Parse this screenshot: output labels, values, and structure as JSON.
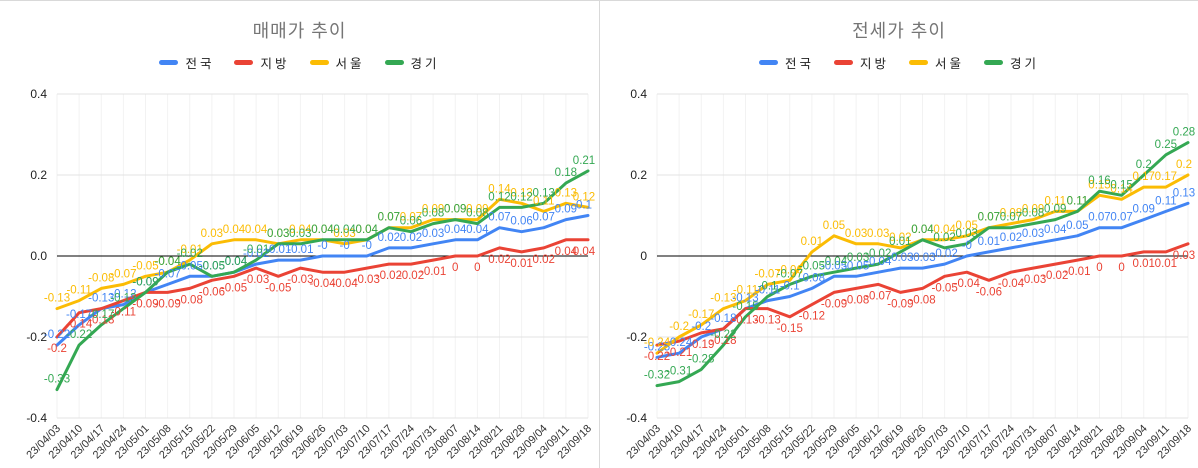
{
  "chart_data": [
    {
      "type": "line",
      "title": "매매가 추이",
      "legend_position": "top",
      "grid": true,
      "ylim": [
        -0.4,
        0.4
      ],
      "y_tick_labels": [
        "0.4",
        "0.2",
        "0.0",
        "-0.2",
        "-0.4"
      ],
      "y_tick_values": [
        0.4,
        0.2,
        0,
        -0.2,
        -0.4
      ],
      "categories": [
        "23/04/03",
        "23/04/10",
        "23/04/17",
        "23/04/24",
        "23/05/01",
        "23/05/08",
        "23/05/15",
        "23/05/22",
        "23/05/29",
        "23/06/05",
        "23/06/12",
        "23/06/19",
        "23/06/26",
        "23/07/03",
        "23/07/10",
        "23/07/17",
        "23/07/24",
        "23/07/31",
        "23/08/07",
        "23/08/14",
        "23/08/21",
        "23/08/28",
        "23/09/04",
        "23/09/11",
        "23/09/18"
      ],
      "series": [
        {
          "name": "전국",
          "color": "#4285f4",
          "label_position": "above",
          "values": [
            "-0.22",
            "-0.17",
            "-0.13",
            "-0.12",
            "-0.09",
            "-0.07",
            "-0.05",
            "-0.05",
            "-0.04",
            "-0.02",
            "-0.01",
            "-0.01",
            "-0",
            "-0",
            "-0",
            "0.02",
            "0.02",
            "0.03",
            "0.04",
            "0.04",
            "0.07",
            "0.06",
            "0.07",
            "0.09",
            "0.1"
          ]
        },
        {
          "name": "지방",
          "color": "#ea4335",
          "label_position": "below",
          "values": [
            "-0.2",
            "-0.14",
            "-0.13",
            "-0.11",
            "-0.09",
            "-0.09",
            "-0.08",
            "-0.06",
            "-0.05",
            "-0.03",
            "-0.05",
            "-0.03",
            "-0.04",
            "-0.04",
            "-0.03",
            "-0.02",
            "-0.02",
            "-0.01",
            "0",
            "0",
            "0.02",
            "0.01",
            "0.02",
            "0.04",
            "0.04"
          ]
        },
        {
          "name": "서울",
          "color": "#fbbc04",
          "label_position": "above",
          "values": [
            "-0.13",
            "-0.11",
            "-0.08",
            "-0.07",
            "-0.05",
            "-0.04",
            "-0.01",
            "0.03",
            "0.04",
            "0.04",
            "0.03",
            "0.04",
            "0.04",
            "0.03",
            "0.04",
            "0.07",
            "0.07",
            "0.09",
            "0.09",
            "0.09",
            "0.14",
            "0.13",
            "0.11",
            "0.13",
            "0.12"
          ]
        },
        {
          "name": "경기",
          "color": "#34a853",
          "label_position": "above",
          "values": [
            "-0.33",
            "-0.22",
            "-0.17",
            "-0.13",
            "-0.09",
            "-0.04",
            "-0.02",
            "-0.05",
            "-0.04",
            "-0.01",
            "0.03",
            "0.03",
            "0.04",
            "0.04",
            "0.04",
            "0.07",
            "0.06",
            "0.08",
            "0.09",
            "0.08",
            "0.12",
            "0.12",
            "0.13",
            "0.18",
            "0.21"
          ]
        }
      ]
    },
    {
      "type": "line",
      "title": "전세가 추이",
      "legend_position": "top",
      "grid": true,
      "ylim": [
        -0.4,
        0.4
      ],
      "y_tick_labels": [
        "0.4",
        "0.2",
        "0",
        "-0.2",
        "-0.4"
      ],
      "y_tick_values": [
        0.4,
        0.2,
        0,
        -0.2,
        -0.4
      ],
      "categories": [
        "23/04/03",
        "23/04/10",
        "23/04/17",
        "23/04/24",
        "23/05/01",
        "23/05/08",
        "23/05/15",
        "23/05/22",
        "23/05/29",
        "23/06/05",
        "23/06/12",
        "23/06/19",
        "23/06/26",
        "23/07/03",
        "23/07/10",
        "23/07/17",
        "23/07/24",
        "23/07/31",
        "23/08/07",
        "23/08/14",
        "23/08/21",
        "23/08/28",
        "23/09/04",
        "23/09/11",
        "23/09/18"
      ],
      "series": [
        {
          "name": "전국",
          "color": "#4285f4",
          "label_position": "above",
          "values": [
            "-0.25",
            "-0.24",
            "-0.2",
            "-0.18",
            "-0.13",
            "-0.11",
            "-0.1",
            "-0.08",
            "-0.05",
            "-0.05",
            "-0.04",
            "-0.03",
            "-0.03",
            "-0.02",
            "-0",
            "0.01",
            "0.02",
            "0.03",
            "0.04",
            "0.05",
            "0.07",
            "0.07",
            "0.09",
            "0.11",
            "0.13"
          ]
        },
        {
          "name": "지방",
          "color": "#ea4335",
          "label_position": "below",
          "values": [
            "-0.22",
            "-0.21",
            "-0.19",
            "-0.18",
            "-0.13",
            "-0.13",
            "-0.15",
            "-0.12",
            "-0.09",
            "-0.08",
            "-0.07",
            "-0.09",
            "-0.08",
            "-0.05",
            "-0.04",
            "-0.06",
            "-0.04",
            "-0.03",
            "-0.02",
            "-0.01",
            "0",
            "0",
            "0.01",
            "0.01",
            "0.03"
          ]
        },
        {
          "name": "서울",
          "color": "#fbbc04",
          "label_position": "above",
          "values": [
            "-0.24",
            "-0.2",
            "-0.17",
            "-0.13",
            "-0.11",
            "-0.07",
            "-0.06",
            "0.01",
            "0.05",
            "0.03",
            "0.03",
            "0.02",
            "0.04",
            "0.04",
            "0.05",
            "0.07",
            "0.08",
            "0.09",
            "0.11",
            "0.11",
            "0.15",
            "0.14",
            "0.17",
            "0.17",
            "0.2"
          ]
        },
        {
          "name": "경기",
          "color": "#34a853",
          "label_position": "above",
          "values": [
            "-0.32",
            "-0.31",
            "-0.28",
            "-0.22",
            "-0.15",
            "-0.1",
            "-0.07",
            "-0.05",
            "-0.04",
            "-0.03",
            "-0.02",
            "0.01",
            "0.04",
            "0.02",
            "0.03",
            "0.07",
            "0.07",
            "0.08",
            "0.09",
            "0.11",
            "0.16",
            "0.15",
            "0.2",
            "0.25",
            "0.28"
          ]
        }
      ]
    }
  ]
}
